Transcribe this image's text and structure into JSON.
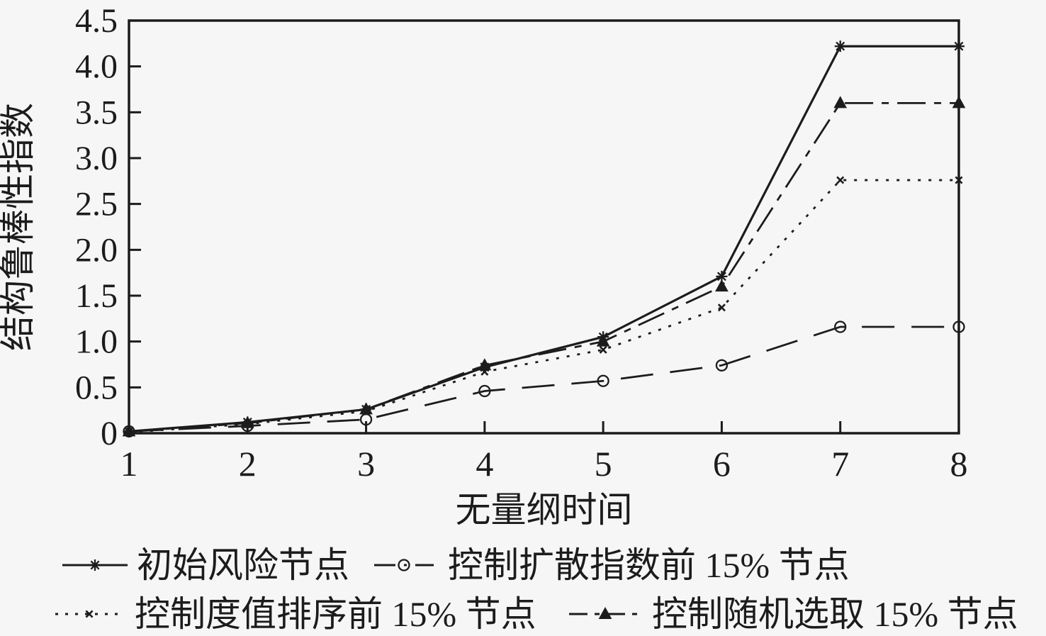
{
  "colors": {
    "background": "#f6f6f6",
    "ink": "#1c1c1c"
  },
  "chart_data": {
    "type": "line",
    "title": "",
    "xlabel": "无量纲时间",
    "ylabel": "结构鲁棒性指数",
    "xlim": [
      1,
      8
    ],
    "ylim": [
      0,
      4.5
    ],
    "grid": false,
    "legend_position": "bottom",
    "x": [
      1,
      2,
      3,
      4,
      5,
      6,
      7,
      8
    ],
    "xtick_labels": [
      "1",
      "2",
      "3",
      "4",
      "5",
      "6",
      "7",
      "8"
    ],
    "ytick_values": [
      0,
      0.5,
      1.0,
      1.5,
      2.0,
      2.5,
      3.0,
      3.5,
      4.0,
      4.5
    ],
    "ytick_labels": [
      "0",
      "0.5",
      "1.0",
      "1.5",
      "2.0",
      "2.5",
      "3.0",
      "3.5",
      "4.0",
      "4.5"
    ],
    "series": [
      {
        "name": "初始风险节点",
        "line_style": "solid",
        "marker": "asterisk",
        "values": [
          0.02,
          0.12,
          0.26,
          0.72,
          1.05,
          1.71,
          4.22,
          4.22
        ]
      },
      {
        "name": "控制扩散指数前 15% 节点",
        "line_style": "long-dash",
        "marker": "circle",
        "values": [
          0.02,
          0.08,
          0.15,
          0.46,
          0.57,
          0.74,
          1.16,
          1.16
        ]
      },
      {
        "name": "控制度值排序前 15% 节点",
        "line_style": "dotted",
        "marker": "x",
        "values": [
          0.01,
          0.1,
          0.24,
          0.67,
          0.91,
          1.37,
          2.76,
          2.76
        ]
      },
      {
        "name": "控制随机选取 15% 节点",
        "line_style": "dash-dot",
        "marker": "triangle",
        "values": [
          0.02,
          0.11,
          0.26,
          0.74,
          1.0,
          1.6,
          3.6,
          3.6
        ]
      }
    ],
    "legend_rows": [
      [
        0,
        1
      ],
      [
        2,
        3
      ]
    ]
  }
}
